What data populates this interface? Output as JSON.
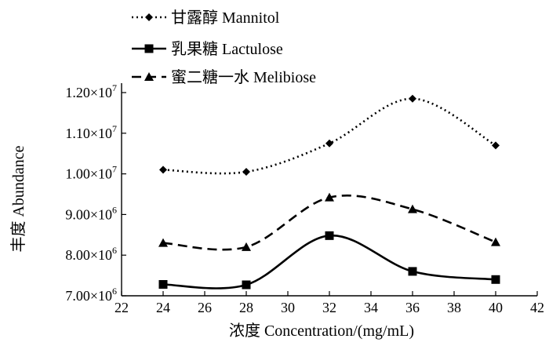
{
  "chart_data": {
    "type": "line",
    "x": [
      24,
      28,
      32,
      36,
      40
    ],
    "xlabel": "浓度 Concentration/(mg/mL)",
    "ylabel": "丰度 Abundance",
    "xlim": [
      22,
      42
    ],
    "ylim": [
      7000000,
      12000000
    ],
    "x_ticks": [
      22,
      24,
      26,
      28,
      30,
      32,
      34,
      36,
      38,
      40,
      42
    ],
    "x_tick_labels": [
      "22",
      "24",
      "26",
      "28",
      "30",
      "32",
      "34",
      "36",
      "38",
      "40",
      "42"
    ],
    "y_ticks": [
      7000000,
      8000000,
      9000000,
      10000000,
      11000000,
      12000000
    ],
    "y_tick_labels": [
      {
        "mant": "7.00×10",
        "exp": "6"
      },
      {
        "mant": "8.00×10",
        "exp": "6"
      },
      {
        "mant": "9.00×10",
        "exp": "6"
      },
      {
        "mant": "1.00×10",
        "exp": "7"
      },
      {
        "mant": "1.10×10",
        "exp": "7"
      },
      {
        "mant": "1.20×10",
        "exp": "7"
      }
    ],
    "grid": false,
    "legend_position": "top-left",
    "series": [
      {
        "name": "甘露醇 Mannitol",
        "values": [
          10100000,
          10050000,
          10750000,
          11850000,
          10700000
        ],
        "line_style": "dotted",
        "marker": "diamond"
      },
      {
        "name": "乳果糖 Lactulose",
        "values": [
          7280000,
          7270000,
          8480000,
          7600000,
          7400000
        ],
        "line_style": "solid",
        "marker": "square"
      },
      {
        "name": "蜜二糖一水 Melibiose",
        "values": [
          8300000,
          8200000,
          9420000,
          9130000,
          8320000
        ],
        "line_style": "dashed",
        "marker": "triangle"
      }
    ]
  }
}
